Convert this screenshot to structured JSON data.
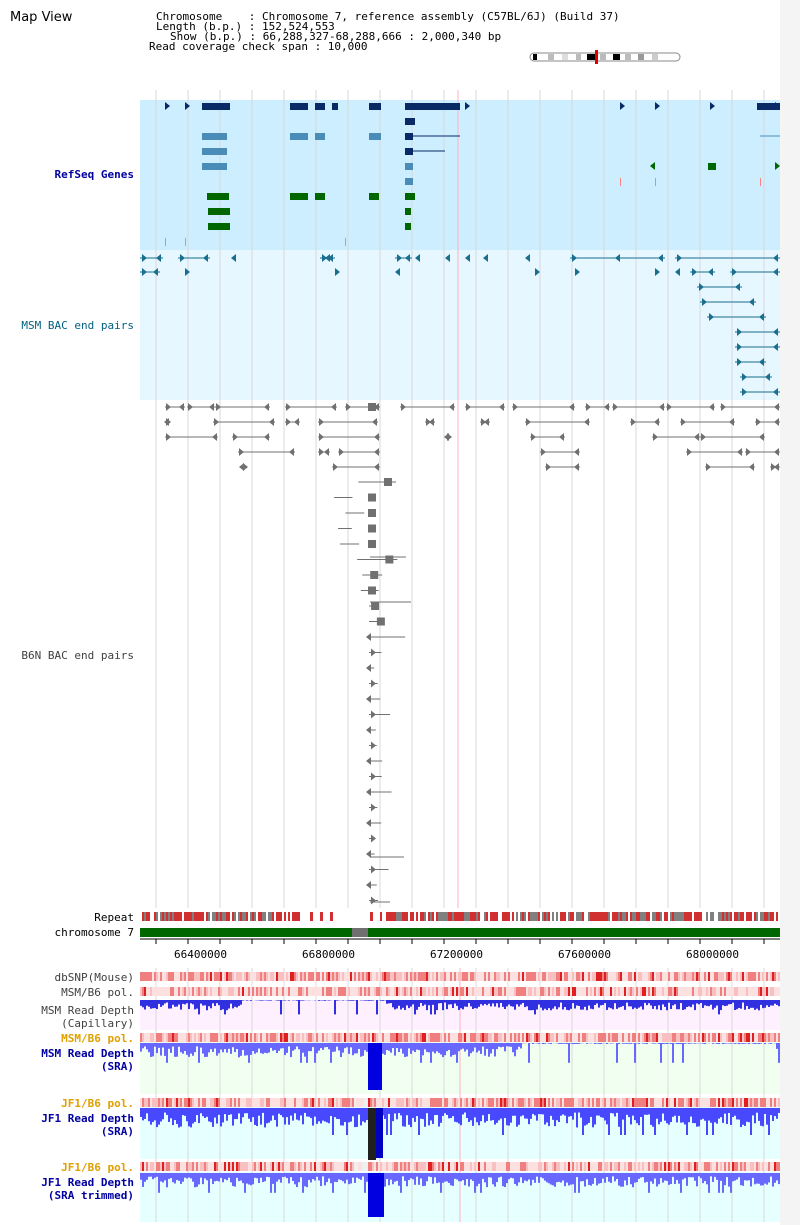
{
  "header": {
    "title": "Map View",
    "chromosome_label": "Chromosome    : Chromosome 7, reference assembly (C57BL/6J) (Build 37)",
    "length_label": "Length (b.p.) : 152,524,553",
    "show_label": "Show (b.p.) : 66,288,327-68,288,666 : 2,000,340 bp",
    "coverage_label": "Read coverage check span : 10,000"
  },
  "tracks": {
    "refseq": "RefSeq Genes",
    "msm_bac": "MSM BAC end pairs",
    "b6n_bac": "B6N BAC end pairs",
    "repeat": "Repeat",
    "chromosome": "chromosome 7",
    "dbsnp": "dbSNP(Mouse)",
    "msm_b6_pol_1": "MSM/B6 pol.",
    "msm_depth_cap": "MSM Read Depth\n(Capillary)",
    "msm_b6_pol_2": "MSM/B6 pol.",
    "msm_depth_sra": "MSM Read Depth\n(SRA)",
    "jf1_b6_pol_1": "JF1/B6 pol.",
    "jf1_depth_sra": "JF1 Read Depth\n(SRA)",
    "jf1_b6_pol_2": "JF1/B6 pol.",
    "jf1_depth_trim": "JF1 Read Depth\n(SRA trimmed)"
  },
  "axis": {
    "ticks": [
      "66400000",
      "66800000",
      "67200000",
      "67600000",
      "68000000"
    ]
  },
  "colors": {
    "refseq_bg": "#cceeff",
    "msm_bg": "#e6f7ff",
    "gene_dark": "#0a2a66",
    "gene_mid": "#4a8cb8",
    "gene_green": "#006600",
    "chromosome_green": "#006600",
    "snp_red": "#e03030",
    "depth_blue": "#2020e0"
  }
}
